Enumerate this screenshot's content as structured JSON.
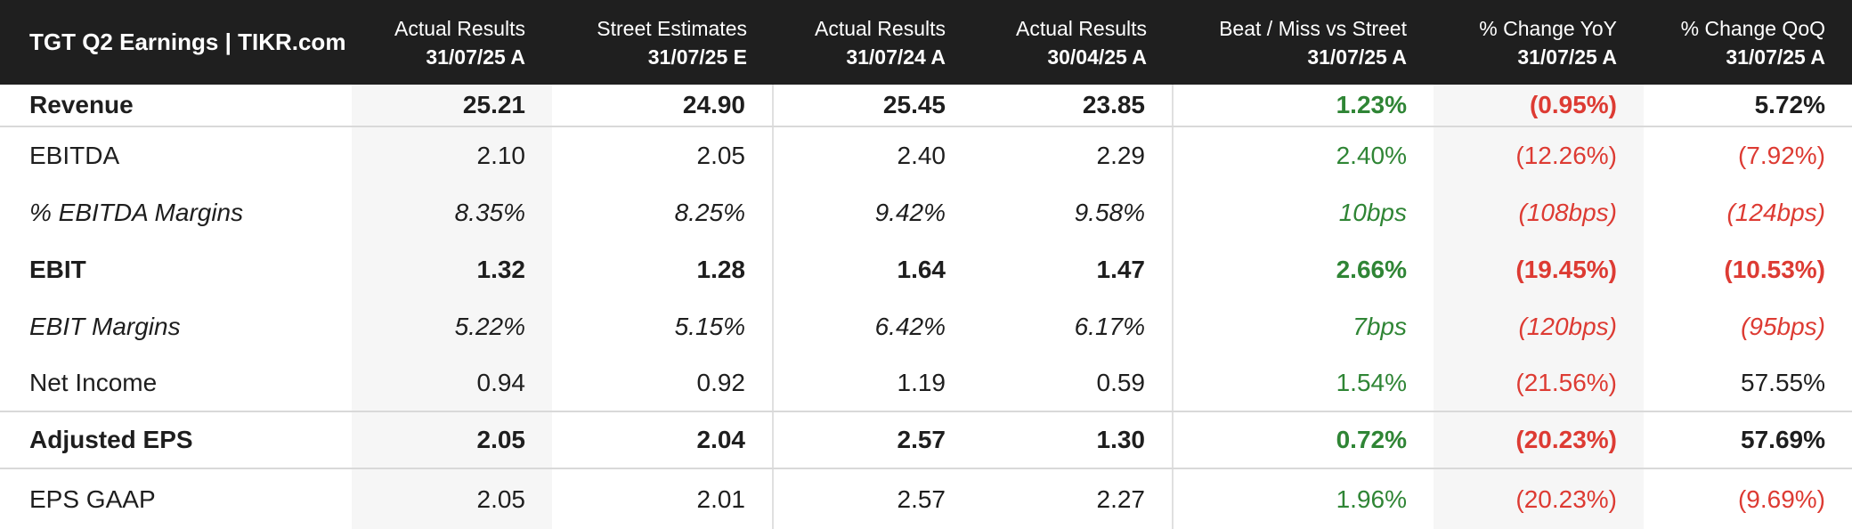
{
  "colors": {
    "positive": "#2f8535",
    "negative": "#dd3b33",
    "header_bg": "#1f1f1f",
    "header_text": "#ffffff",
    "band_bg": "#f6f6f6",
    "text": "#1e1e1e",
    "separator": "#d9d9d9",
    "divider": "#e0e0e0"
  },
  "chart_data": {
    "type": "table",
    "title": "TGT Q2 Earnings | TIKR.com",
    "column_headers": [
      {
        "label": "Actual Results",
        "date": "31/07/25 A"
      },
      {
        "label": "Street Estimates",
        "date": "31/07/25 E"
      },
      {
        "label": "Actual Results",
        "date": "31/07/24 A"
      },
      {
        "label": "Actual Results",
        "date": "30/04/25 A"
      },
      {
        "label": "Beat / Miss vs Street",
        "date": "31/07/25 A"
      },
      {
        "label": "% Change YoY",
        "date": "31/07/25 A"
      },
      {
        "label": "% Change QoQ",
        "date": "31/07/25 A"
      }
    ],
    "rows": [
      {
        "label": "Revenue",
        "emphasis": "bold",
        "values": [
          {
            "text": "25.21",
            "tone": "neutral"
          },
          {
            "text": "24.90",
            "tone": "neutral"
          },
          {
            "text": "25.45",
            "tone": "neutral"
          },
          {
            "text": "23.85",
            "tone": "neutral"
          },
          {
            "text": "1.23%",
            "tone": "positive"
          },
          {
            "text": "(0.95%)",
            "tone": "negative"
          },
          {
            "text": "5.72%",
            "tone": "neutral"
          }
        ]
      },
      {
        "label": "EBITDA",
        "emphasis": "regular",
        "values": [
          {
            "text": "2.10",
            "tone": "neutral"
          },
          {
            "text": "2.05",
            "tone": "neutral"
          },
          {
            "text": "2.40",
            "tone": "neutral"
          },
          {
            "text": "2.29",
            "tone": "neutral"
          },
          {
            "text": "2.40%",
            "tone": "positive"
          },
          {
            "text": "(12.26%)",
            "tone": "negative"
          },
          {
            "text": "(7.92%)",
            "tone": "negative"
          }
        ]
      },
      {
        "label": "% EBITDA Margins",
        "emphasis": "italic",
        "values": [
          {
            "text": "8.35%",
            "tone": "neutral"
          },
          {
            "text": "8.25%",
            "tone": "neutral"
          },
          {
            "text": "9.42%",
            "tone": "neutral"
          },
          {
            "text": "9.58%",
            "tone": "neutral"
          },
          {
            "text": "10bps",
            "tone": "positive"
          },
          {
            "text": "(108bps)",
            "tone": "negative"
          },
          {
            "text": "(124bps)",
            "tone": "negative"
          }
        ]
      },
      {
        "label": "EBIT",
        "emphasis": "bold",
        "values": [
          {
            "text": "1.32",
            "tone": "neutral"
          },
          {
            "text": "1.28",
            "tone": "neutral"
          },
          {
            "text": "1.64",
            "tone": "neutral"
          },
          {
            "text": "1.47",
            "tone": "neutral"
          },
          {
            "text": "2.66%",
            "tone": "positive"
          },
          {
            "text": "(19.45%)",
            "tone": "negative"
          },
          {
            "text": "(10.53%)",
            "tone": "negative"
          }
        ]
      },
      {
        "label": "EBIT Margins",
        "emphasis": "italic",
        "values": [
          {
            "text": "5.22%",
            "tone": "neutral"
          },
          {
            "text": "5.15%",
            "tone": "neutral"
          },
          {
            "text": "6.42%",
            "tone": "neutral"
          },
          {
            "text": "6.17%",
            "tone": "neutral"
          },
          {
            "text": "7bps",
            "tone": "positive"
          },
          {
            "text": "(120bps)",
            "tone": "negative"
          },
          {
            "text": "(95bps)",
            "tone": "negative"
          }
        ]
      },
      {
        "label": "Net Income",
        "emphasis": "regular",
        "values": [
          {
            "text": "0.94",
            "tone": "neutral"
          },
          {
            "text": "0.92",
            "tone": "neutral"
          },
          {
            "text": "1.19",
            "tone": "neutral"
          },
          {
            "text": "0.59",
            "tone": "neutral"
          },
          {
            "text": "1.54%",
            "tone": "positive"
          },
          {
            "text": "(21.56%)",
            "tone": "negative"
          },
          {
            "text": "57.55%",
            "tone": "neutral"
          }
        ]
      },
      {
        "label": "Adjusted EPS",
        "emphasis": "bold",
        "values": [
          {
            "text": "2.05",
            "tone": "neutral"
          },
          {
            "text": "2.04",
            "tone": "neutral"
          },
          {
            "text": "2.57",
            "tone": "neutral"
          },
          {
            "text": "1.30",
            "tone": "neutral"
          },
          {
            "text": "0.72%",
            "tone": "positive"
          },
          {
            "text": "(20.23%)",
            "tone": "negative"
          },
          {
            "text": "57.69%",
            "tone": "neutral"
          }
        ]
      },
      {
        "label": "EPS GAAP",
        "emphasis": "regular",
        "values": [
          {
            "text": "2.05",
            "tone": "neutral"
          },
          {
            "text": "2.01",
            "tone": "neutral"
          },
          {
            "text": "2.57",
            "tone": "neutral"
          },
          {
            "text": "2.27",
            "tone": "neutral"
          },
          {
            "text": "1.96%",
            "tone": "positive"
          },
          {
            "text": "(20.23%)",
            "tone": "negative"
          },
          {
            "text": "(9.69%)",
            "tone": "negative"
          }
        ]
      }
    ]
  }
}
